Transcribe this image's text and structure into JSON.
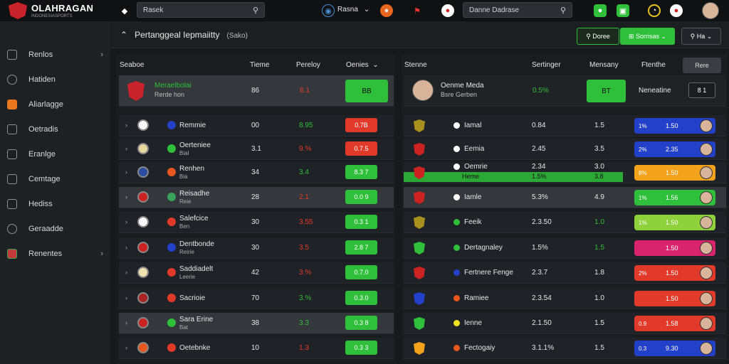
{
  "brand": {
    "name": "OLAHRAGAN",
    "tagline": "INDONESIASPORTS"
  },
  "topbar": {
    "search1": "Rasek",
    "user_menu": "Rasna",
    "search2": "Danne Dadrase"
  },
  "sidebar": {
    "items": [
      {
        "label": "Renlos",
        "chev": "›"
      },
      {
        "label": "Hatiden",
        "chev": ""
      },
      {
        "label": "Aliarlagge",
        "chev": ""
      },
      {
        "label": "Oetradis",
        "chev": ""
      },
      {
        "label": "Eranlge",
        "chev": ""
      },
      {
        "label": "Cemtage",
        "chev": ""
      },
      {
        "label": "Hediss",
        "chev": ""
      },
      {
        "label": "Geraadde",
        "chev": ""
      },
      {
        "label": "Renentes",
        "chev": "›"
      }
    ]
  },
  "breadcrumb": {
    "title": "Pertanggeal Iepmaiitty",
    "sub": "(Sako)"
  },
  "toolbar": {
    "btn1": "Doree",
    "btn2": "Sorrisas",
    "btn3": "Ha"
  },
  "left": {
    "headers": {
      "team": "Seaboe",
      "c1": "Tieme",
      "c2": "Pereloy",
      "c3": "Oenies"
    },
    "featured": {
      "name": "Meraelbolai",
      "sub": "Rerde hon",
      "v1": "86",
      "v2": "8.1",
      "odd": "BB"
    },
    "rows": [
      {
        "name": "Remmie",
        "sub": "",
        "v1": "00",
        "v2": "8.95",
        "odd": "0.7B"
      },
      {
        "name": "Oerteniee",
        "sub": "Bial",
        "v1": "3.1",
        "v2": "9.%",
        "odd": "0.7.5"
      },
      {
        "name": "Renhen",
        "sub": "Bia",
        "v1": "34",
        "v2": "3.4",
        "odd": "8.3 7"
      },
      {
        "name": "Reisadhe",
        "sub": "Reie",
        "v1": "28",
        "v2": "2.1",
        "odd": "0.0 9"
      },
      {
        "name": "Salefcice",
        "sub": "Ben",
        "v1": "30",
        "v2": "3.55",
        "odd": "0.3 1"
      },
      {
        "name": "Dentbonde",
        "sub": "Reirie",
        "v1": "30",
        "v2": "3.5",
        "odd": "2.8 7"
      },
      {
        "name": "Saddiadelt",
        "sub": "Leerie",
        "v1": "42",
        "v2": "3.%",
        "odd": "0.7.0"
      },
      {
        "name": "Sacrioie",
        "sub": "",
        "v1": "70",
        "v2": "3.%",
        "odd": "0.3.0"
      },
      {
        "name": "Sara Erine",
        "sub": "Bat",
        "v1": "38",
        "v2": "3.3",
        "odd": "0.3 8"
      },
      {
        "name": "Oetebnke",
        "sub": "",
        "v1": "10",
        "v2": "1.3",
        "odd": "0.3 3"
      }
    ]
  },
  "right": {
    "headers": {
      "team": "Stenne",
      "c1": "Sertinger",
      "c2": "Mensany",
      "c3": "Ftenthe",
      "btn": "Rere"
    },
    "featured": {
      "name": "Oenme Meda",
      "sub": "Bsre Gerben",
      "v1": "0.5%",
      "odd": "BT",
      "label": "Neneatine",
      "box": "8 1"
    },
    "rows": [
      {
        "name": "Iamal",
        "v1": "0.84",
        "v2": "1.5",
        "chip_a": "1%",
        "chip_b": "1.50"
      },
      {
        "name": "Eemia",
        "v1": "2.45",
        "v2": "3.5",
        "chip_a": "2%",
        "chip_b": "2.35"
      },
      {
        "name": "Oemrie",
        "v1": "2.34",
        "v2": "3.0",
        "sub1": "Heme",
        "sub2": "1.5%",
        "sub3": "3.8",
        "chip_a": "8%",
        "chip_b": "1.50"
      },
      {
        "name": "Iamle",
        "v1": "5.3%",
        "v2": "4.9",
        "chip_a": "1%",
        "chip_b": "1.56"
      },
      {
        "name": "Feeik",
        "v1": "2.3.50",
        "v2": "1.0",
        "chip_a": "1%",
        "chip_b": "1.50"
      },
      {
        "name": "Dertagnaley",
        "v1": "1.5%",
        "v2": "1.5",
        "chip_a": "",
        "chip_b": "1.50"
      },
      {
        "name": "Fertnere Fenge",
        "v1": "2.3.7",
        "v2": "1.8",
        "chip_a": "2%",
        "chip_b": "1.50"
      },
      {
        "name": "Ramiee",
        "v1": "2.3.54",
        "v2": "1.0",
        "chip_a": "",
        "chip_b": "1.50"
      },
      {
        "name": "Ienne",
        "v1": "2.1.50",
        "v2": "1.5",
        "chip_a": "0.9",
        "chip_b": "1.58"
      },
      {
        "name": "Fectogaiy",
        "v1": "3.1.1%",
        "v2": "1.5",
        "chip_a": "0.3",
        "chip_b": "9.30"
      }
    ]
  },
  "colors": {
    "green": "#2fbf3a",
    "red": "#e23a2a",
    "blue": "#2340c8",
    "orange": "#f2a21b",
    "magenta": "#d8246c",
    "lime": "#8ed13a"
  }
}
